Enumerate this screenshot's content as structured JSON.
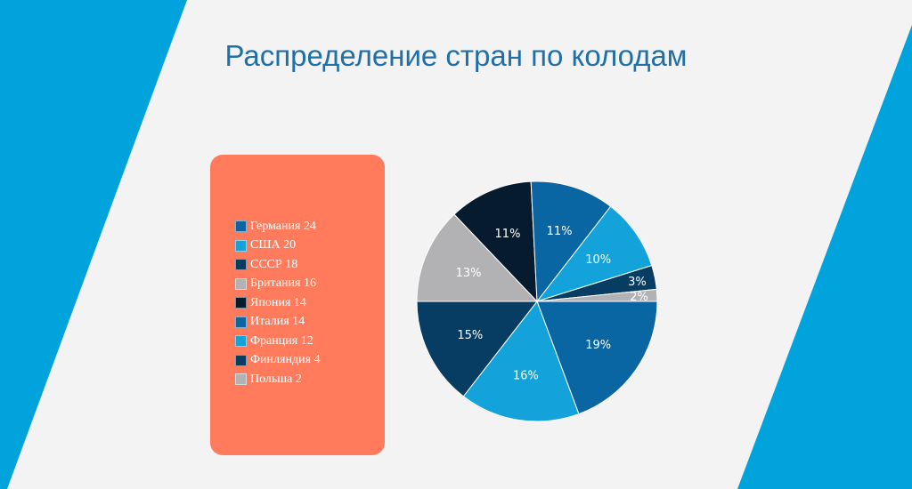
{
  "header": {
    "title": "Распределение стран по колодам"
  },
  "colors": {
    "side_band": "#00a3dc",
    "panel": "#ff7b5c",
    "title": "#1f6fa8"
  },
  "chart_data": {
    "type": "pie",
    "title": "Распределение стран по колодам",
    "legend_position": "left",
    "slices": [
      {
        "label": "Германия 24",
        "name": "Германия",
        "value": 24,
        "percent_label": "19%",
        "color": "#0a65a3"
      },
      {
        "label": "США 20",
        "name": "США",
        "value": 20,
        "percent_label": "16%",
        "color": "#13a3da"
      },
      {
        "label": "СССР 18",
        "name": "СССР",
        "value": 18,
        "percent_label": "15%",
        "color": "#083d63"
      },
      {
        "label": "Британия 16",
        "name": "Британия",
        "value": 16,
        "percent_label": "13%",
        "color": "#b2b2b5"
      },
      {
        "label": "Япония 14",
        "name": "Япония",
        "value": 14,
        "percent_label": "11%",
        "color": "#061b2e"
      },
      {
        "label": "Италия 14",
        "name": "Италия",
        "value": 14,
        "percent_label": "11%",
        "color": "#0a65a3"
      },
      {
        "label": "Франция 12",
        "name": "Франция",
        "value": 12,
        "percent_label": "10%",
        "color": "#13a3da"
      },
      {
        "label": "Финляндия 4",
        "name": "Финляндия",
        "value": 4,
        "percent_label": "3%",
        "color": "#083d63"
      },
      {
        "label": "Польша 2",
        "name": "Польша",
        "value": 2,
        "percent_label": "2%",
        "color": "#b2b2b5"
      }
    ]
  }
}
